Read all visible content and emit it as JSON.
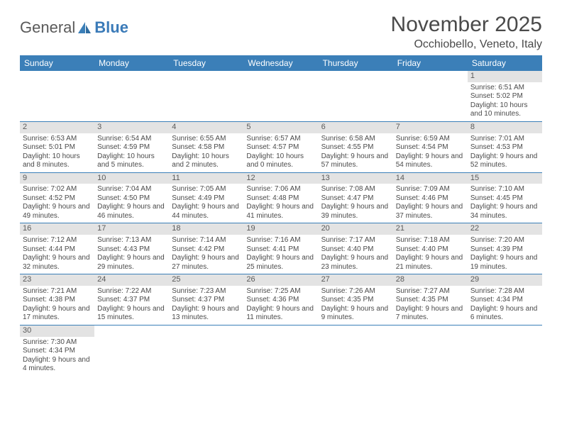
{
  "logo": {
    "word1": "General",
    "word2": "Blue",
    "sail_color": "#3b7fb8",
    "text_color_1": "#5a5a5a",
    "text_color_2": "#3a7ab8"
  },
  "title": "November 2025",
  "location": "Occhiobello, Veneto, Italy",
  "colors": {
    "header_bg": "#3b7fb8",
    "header_text": "#ffffff",
    "daynum_bg": "#e3e3e3",
    "row_border": "#3b7fb8",
    "body_text": "#4a4a4a"
  },
  "weekdays": [
    "Sunday",
    "Monday",
    "Tuesday",
    "Wednesday",
    "Thursday",
    "Friday",
    "Saturday"
  ],
  "weeks": [
    [
      null,
      null,
      null,
      null,
      null,
      null,
      {
        "n": "1",
        "sunrise": "Sunrise: 6:51 AM",
        "sunset": "Sunset: 5:02 PM",
        "daylight": "Daylight: 10 hours and 10 minutes."
      }
    ],
    [
      {
        "n": "2",
        "sunrise": "Sunrise: 6:53 AM",
        "sunset": "Sunset: 5:01 PM",
        "daylight": "Daylight: 10 hours and 8 minutes."
      },
      {
        "n": "3",
        "sunrise": "Sunrise: 6:54 AM",
        "sunset": "Sunset: 4:59 PM",
        "daylight": "Daylight: 10 hours and 5 minutes."
      },
      {
        "n": "4",
        "sunrise": "Sunrise: 6:55 AM",
        "sunset": "Sunset: 4:58 PM",
        "daylight": "Daylight: 10 hours and 2 minutes."
      },
      {
        "n": "5",
        "sunrise": "Sunrise: 6:57 AM",
        "sunset": "Sunset: 4:57 PM",
        "daylight": "Daylight: 10 hours and 0 minutes."
      },
      {
        "n": "6",
        "sunrise": "Sunrise: 6:58 AM",
        "sunset": "Sunset: 4:55 PM",
        "daylight": "Daylight: 9 hours and 57 minutes."
      },
      {
        "n": "7",
        "sunrise": "Sunrise: 6:59 AM",
        "sunset": "Sunset: 4:54 PM",
        "daylight": "Daylight: 9 hours and 54 minutes."
      },
      {
        "n": "8",
        "sunrise": "Sunrise: 7:01 AM",
        "sunset": "Sunset: 4:53 PM",
        "daylight": "Daylight: 9 hours and 52 minutes."
      }
    ],
    [
      {
        "n": "9",
        "sunrise": "Sunrise: 7:02 AM",
        "sunset": "Sunset: 4:52 PM",
        "daylight": "Daylight: 9 hours and 49 minutes."
      },
      {
        "n": "10",
        "sunrise": "Sunrise: 7:04 AM",
        "sunset": "Sunset: 4:50 PM",
        "daylight": "Daylight: 9 hours and 46 minutes."
      },
      {
        "n": "11",
        "sunrise": "Sunrise: 7:05 AM",
        "sunset": "Sunset: 4:49 PM",
        "daylight": "Daylight: 9 hours and 44 minutes."
      },
      {
        "n": "12",
        "sunrise": "Sunrise: 7:06 AM",
        "sunset": "Sunset: 4:48 PM",
        "daylight": "Daylight: 9 hours and 41 minutes."
      },
      {
        "n": "13",
        "sunrise": "Sunrise: 7:08 AM",
        "sunset": "Sunset: 4:47 PM",
        "daylight": "Daylight: 9 hours and 39 minutes."
      },
      {
        "n": "14",
        "sunrise": "Sunrise: 7:09 AM",
        "sunset": "Sunset: 4:46 PM",
        "daylight": "Daylight: 9 hours and 37 minutes."
      },
      {
        "n": "15",
        "sunrise": "Sunrise: 7:10 AM",
        "sunset": "Sunset: 4:45 PM",
        "daylight": "Daylight: 9 hours and 34 minutes."
      }
    ],
    [
      {
        "n": "16",
        "sunrise": "Sunrise: 7:12 AM",
        "sunset": "Sunset: 4:44 PM",
        "daylight": "Daylight: 9 hours and 32 minutes."
      },
      {
        "n": "17",
        "sunrise": "Sunrise: 7:13 AM",
        "sunset": "Sunset: 4:43 PM",
        "daylight": "Daylight: 9 hours and 29 minutes."
      },
      {
        "n": "18",
        "sunrise": "Sunrise: 7:14 AM",
        "sunset": "Sunset: 4:42 PM",
        "daylight": "Daylight: 9 hours and 27 minutes."
      },
      {
        "n": "19",
        "sunrise": "Sunrise: 7:16 AM",
        "sunset": "Sunset: 4:41 PM",
        "daylight": "Daylight: 9 hours and 25 minutes."
      },
      {
        "n": "20",
        "sunrise": "Sunrise: 7:17 AM",
        "sunset": "Sunset: 4:40 PM",
        "daylight": "Daylight: 9 hours and 23 minutes."
      },
      {
        "n": "21",
        "sunrise": "Sunrise: 7:18 AM",
        "sunset": "Sunset: 4:40 PM",
        "daylight": "Daylight: 9 hours and 21 minutes."
      },
      {
        "n": "22",
        "sunrise": "Sunrise: 7:20 AM",
        "sunset": "Sunset: 4:39 PM",
        "daylight": "Daylight: 9 hours and 19 minutes."
      }
    ],
    [
      {
        "n": "23",
        "sunrise": "Sunrise: 7:21 AM",
        "sunset": "Sunset: 4:38 PM",
        "daylight": "Daylight: 9 hours and 17 minutes."
      },
      {
        "n": "24",
        "sunrise": "Sunrise: 7:22 AM",
        "sunset": "Sunset: 4:37 PM",
        "daylight": "Daylight: 9 hours and 15 minutes."
      },
      {
        "n": "25",
        "sunrise": "Sunrise: 7:23 AM",
        "sunset": "Sunset: 4:37 PM",
        "daylight": "Daylight: 9 hours and 13 minutes."
      },
      {
        "n": "26",
        "sunrise": "Sunrise: 7:25 AM",
        "sunset": "Sunset: 4:36 PM",
        "daylight": "Daylight: 9 hours and 11 minutes."
      },
      {
        "n": "27",
        "sunrise": "Sunrise: 7:26 AM",
        "sunset": "Sunset: 4:35 PM",
        "daylight": "Daylight: 9 hours and 9 minutes."
      },
      {
        "n": "28",
        "sunrise": "Sunrise: 7:27 AM",
        "sunset": "Sunset: 4:35 PM",
        "daylight": "Daylight: 9 hours and 7 minutes."
      },
      {
        "n": "29",
        "sunrise": "Sunrise: 7:28 AM",
        "sunset": "Sunset: 4:34 PM",
        "daylight": "Daylight: 9 hours and 6 minutes."
      }
    ],
    [
      {
        "n": "30",
        "sunrise": "Sunrise: 7:30 AM",
        "sunset": "Sunset: 4:34 PM",
        "daylight": "Daylight: 9 hours and 4 minutes."
      },
      null,
      null,
      null,
      null,
      null,
      null
    ]
  ]
}
